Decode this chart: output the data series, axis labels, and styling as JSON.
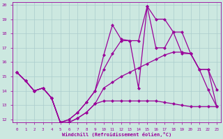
{
  "xlabel": "Windchill (Refroidissement éolien,°C)",
  "background_color": "#cce8e0",
  "grid_color": "#aacccc",
  "line_color": "#990099",
  "xlim": [
    -0.5,
    23.5
  ],
  "ylim": [
    11.8,
    20.2
  ],
  "xticks": [
    0,
    1,
    2,
    3,
    4,
    5,
    6,
    7,
    8,
    9,
    10,
    11,
    12,
    13,
    14,
    15,
    16,
    17,
    18,
    19,
    20,
    21,
    22,
    23
  ],
  "yticks": [
    12,
    13,
    14,
    15,
    16,
    17,
    18,
    19,
    20
  ],
  "line1_x": [
    0,
    1,
    2,
    3,
    4,
    5,
    6,
    7,
    8,
    9,
    10,
    11,
    12,
    13,
    14,
    15,
    16,
    17,
    18,
    19,
    20,
    21,
    22,
    23
  ],
  "line1_y": [
    15.3,
    14.7,
    14.0,
    14.2,
    13.5,
    11.8,
    11.8,
    12.1,
    12.5,
    13.1,
    13.3,
    13.3,
    13.3,
    13.3,
    13.3,
    13.3,
    13.3,
    13.2,
    13.1,
    13.0,
    12.9,
    12.9,
    12.9,
    12.9
  ],
  "line2_x": [
    0,
    1,
    2,
    3,
    4,
    5,
    6,
    7,
    8,
    9,
    10,
    11,
    12,
    13,
    14,
    15,
    16,
    17,
    18,
    19,
    20,
    21,
    22,
    23
  ],
  "line2_y": [
    15.3,
    14.7,
    14.0,
    14.2,
    13.5,
    11.8,
    11.8,
    12.1,
    12.5,
    13.1,
    14.2,
    14.6,
    15.0,
    15.3,
    15.6,
    15.9,
    16.2,
    16.5,
    16.7,
    16.7,
    16.6,
    15.5,
    14.1,
    12.9
  ],
  "line3_x": [
    0,
    1,
    2,
    3,
    4,
    5,
    6,
    7,
    8,
    9,
    10,
    11,
    12,
    13,
    14,
    15,
    16,
    17,
    18,
    19,
    20,
    21,
    22,
    23
  ],
  "line3_y": [
    15.3,
    14.7,
    14.0,
    14.2,
    13.5,
    11.8,
    12.0,
    12.5,
    13.2,
    14.0,
    15.5,
    16.6,
    17.5,
    17.5,
    17.5,
    19.9,
    19.0,
    19.0,
    18.1,
    18.1,
    16.6,
    15.5,
    15.5,
    12.9
  ],
  "line4_x": [
    0,
    1,
    2,
    3,
    4,
    5,
    6,
    7,
    8,
    9,
    10,
    11,
    12,
    13,
    14,
    15,
    16,
    17,
    18,
    19,
    20,
    21,
    22,
    23
  ],
  "line4_y": [
    15.3,
    14.7,
    14.0,
    14.2,
    13.5,
    11.8,
    12.0,
    12.5,
    13.2,
    14.0,
    16.5,
    18.6,
    17.6,
    17.5,
    14.2,
    19.9,
    17.0,
    17.0,
    18.1,
    16.6,
    16.6,
    15.5,
    15.5,
    14.1
  ]
}
